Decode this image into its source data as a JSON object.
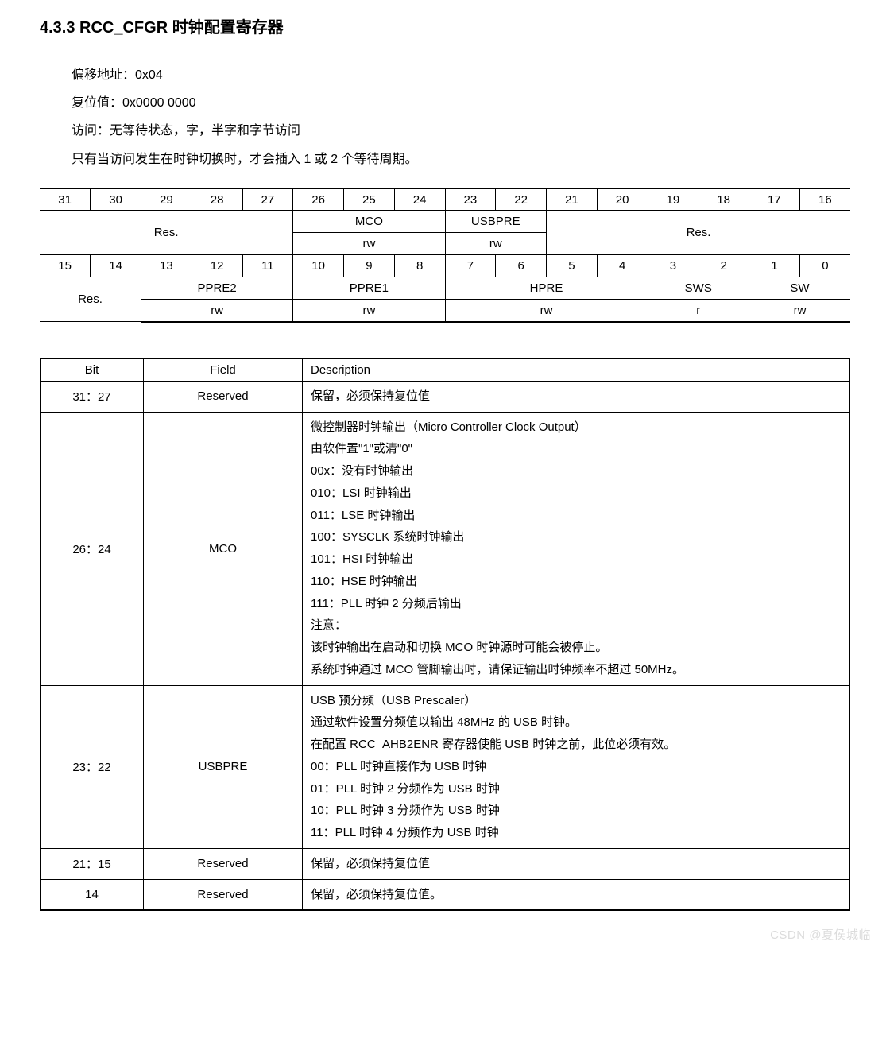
{
  "heading": "4.3.3   RCC_CFGR  时钟配置寄存器",
  "intro": [
    "偏移地址：0x04",
    "复位值：0x0000 0000",
    "访问：无等待状态，字，半字和字节访问",
    "只有当访问发生在时钟切换时，才会插入 1 或 2 个等待周期。"
  ],
  "bits_hi": [
    "31",
    "30",
    "29",
    "28",
    "27",
    "26",
    "25",
    "24",
    "23",
    "22",
    "21",
    "20",
    "19",
    "18",
    "17",
    "16"
  ],
  "bits_lo": [
    "15",
    "14",
    "13",
    "12",
    "11",
    "10",
    "9",
    "8",
    "7",
    "6",
    "5",
    "4",
    "3",
    "2",
    "1",
    "0"
  ],
  "fields_hi": {
    "res1": "Res.",
    "mco": "MCO",
    "mco_rw": "rw",
    "usbpre": "USBPRE",
    "usbpre_rw": "rw",
    "res2": "Res."
  },
  "fields_lo": {
    "res": "Res.",
    "ppre2": "PPRE2",
    "ppre2_rw": "rw",
    "ppre1": "PPRE1",
    "ppre1_rw": "rw",
    "hpre": "HPRE",
    "hpre_rw": "rw",
    "sws": "SWS",
    "sws_r": "r",
    "sw": "SW",
    "sw_rw": "rw"
  },
  "desc_header": {
    "bit": "Bit",
    "field": "Field",
    "desc": "Description"
  },
  "desc_rows": [
    {
      "bit": "31：27",
      "field": "Reserved",
      "desc": "保留，必须保持复位值"
    },
    {
      "bit": "26：24",
      "field": "MCO",
      "desc": "微控制器时钟输出（Micro Controller Clock Output）\n由软件置\"1\"或清\"0\"\n00x：没有时钟输出\n010：LSI 时钟输出\n011：LSE 时钟输出\n100：SYSCLK 系统时钟输出\n101：HSI 时钟输出\n110：HSE 时钟输出\n111：PLL 时钟 2 分频后输出\n注意：\n该时钟输出在启动和切换 MCO 时钟源时可能会被停止。\n系统时钟通过 MCO 管脚输出时，请保证输出时钟频率不超过 50MHz。"
    },
    {
      "bit": "23：22",
      "field": "USBPRE",
      "desc": "USB 预分频（USB Prescaler）\n通过软件设置分频值以输出 48MHz 的 USB 时钟。\n在配置 RCC_AHB2ENR 寄存器使能 USB 时钟之前，此位必须有效。\n00：PLL 时钟直接作为 USB 时钟\n01：PLL 时钟 2 分频作为 USB 时钟\n10：PLL 时钟 3 分频作为 USB 时钟\n11：PLL 时钟 4 分频作为 USB 时钟"
    },
    {
      "bit": "21：15",
      "field": "Reserved",
      "desc": "保留，必须保持复位值"
    },
    {
      "bit": "14",
      "field": "Reserved",
      "desc": "保留，必须保持复位值。"
    }
  ],
  "watermark": "CSDN @夏侯城临"
}
